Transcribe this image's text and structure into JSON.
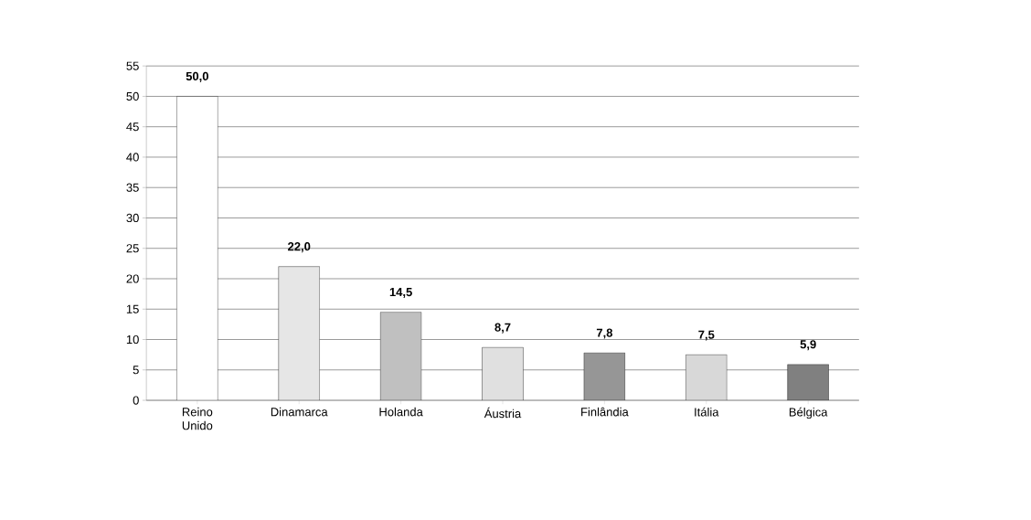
{
  "chart_data": {
    "type": "bar",
    "categories": [
      "Reino Unido",
      "Dinamarca",
      "Holanda",
      "Áustria",
      "Finlândia",
      "Itália",
      "Bélgica"
    ],
    "values": [
      50.0,
      22.0,
      14.5,
      8.7,
      7.8,
      7.5,
      5.9
    ],
    "colors": [
      "#ffffff",
      "#e6e6e6",
      "#c0c0c0",
      "#e0e0e0",
      "#969696",
      "#d8d8d8",
      "#808080"
    ],
    "value_labels": [
      "50,0",
      "22,0",
      "14,5",
      "8,7",
      "7,8",
      "7,5",
      "5,9"
    ],
    "ylim": [
      0,
      55
    ],
    "yticks": [
      0,
      5,
      10,
      15,
      20,
      25,
      30,
      35,
      40,
      45,
      50,
      55
    ],
    "grid": "y"
  }
}
